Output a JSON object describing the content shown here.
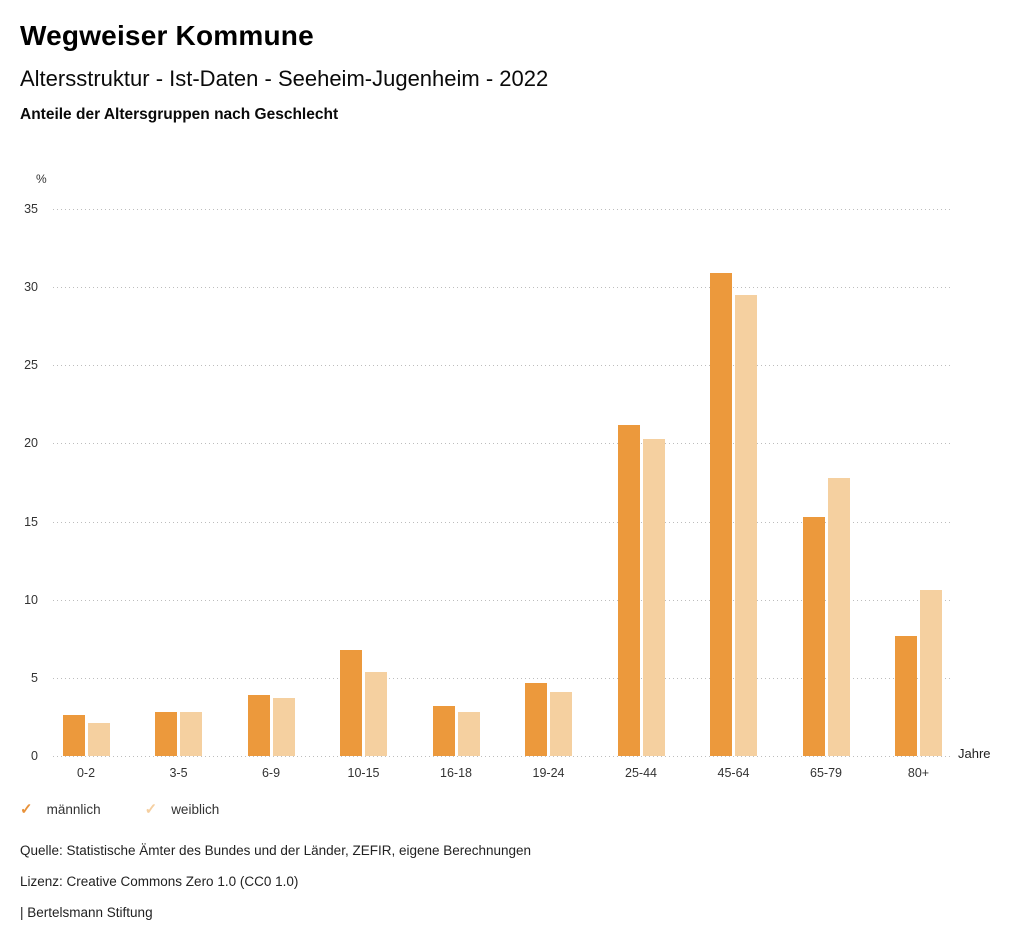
{
  "header": {
    "title": "Wegweiser Kommune",
    "subtitle": "Altersstruktur - Ist-Daten - Seeheim-Jugenheim - 2022",
    "heading": "Anteile der Altersgruppen nach Geschlecht"
  },
  "chart_data": {
    "type": "bar",
    "title": "Anteile der Altersgruppen nach Geschlecht",
    "unit_label": "%",
    "axis_suffix": "Jahre",
    "categories": [
      "0-2",
      "3-5",
      "6-9",
      "10-15",
      "16-18",
      "19-24",
      "25-44",
      "45-64",
      "65-79",
      "80+"
    ],
    "series": [
      {
        "name": "männlich",
        "color": "#EC993C",
        "values": [
          2.6,
          2.8,
          3.9,
          6.8,
          3.2,
          4.7,
          21.2,
          30.9,
          15.3,
          7.7
        ]
      },
      {
        "name": "weiblich",
        "color": "#F5D0A0",
        "values": [
          2.1,
          2.8,
          3.7,
          5.4,
          2.8,
          4.1,
          20.3,
          29.5,
          17.8,
          10.6
        ]
      }
    ],
    "yticks": [
      0,
      5,
      10,
      15,
      20,
      25,
      30,
      35
    ],
    "ylim": [
      0,
      35
    ],
    "grid": "horizontal-dotted",
    "legend_position": "bottom-left"
  },
  "legend": {
    "items": [
      {
        "label": "männlich",
        "icon": "check-icon",
        "color": "#E8923A"
      },
      {
        "label": "weiblich",
        "icon": "check-icon",
        "color": "#F5CFA0"
      }
    ]
  },
  "footer": {
    "source": "Quelle: Statistische Ämter des Bundes und der Länder, ZEFIR, eigene Berechnungen",
    "license": "Lizenz: Creative Commons Zero 1.0 (CC0 1.0)",
    "attribution": "| Bertelsmann Stiftung"
  }
}
